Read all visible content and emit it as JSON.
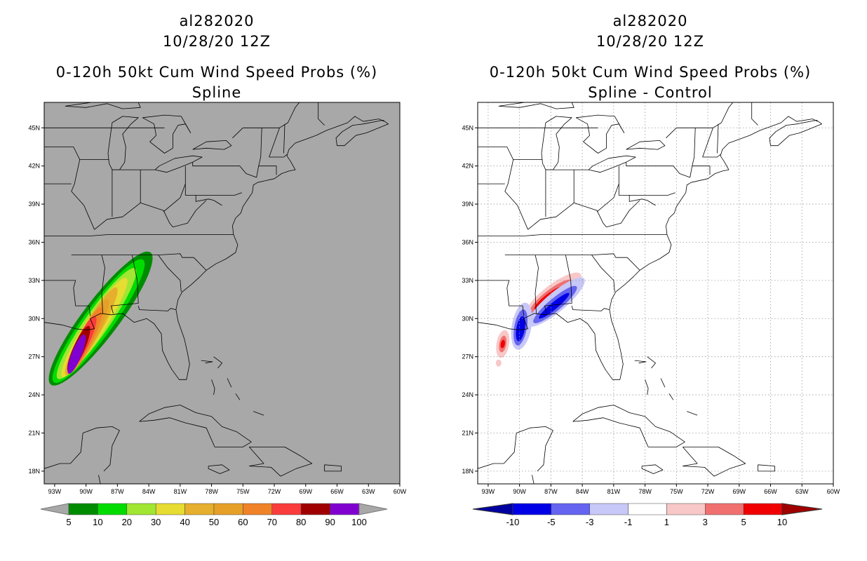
{
  "left": {
    "storm_id": "al282020",
    "datetime": "10/28/20 12Z",
    "title": "0-120h 50kt Cum Wind Speed Probs (%)",
    "subtitle": "Spline",
    "background": "#a8a8a8",
    "colorbar": {
      "labels": [
        "5",
        "10",
        "20",
        "30",
        "40",
        "50",
        "60",
        "70",
        "80",
        "90",
        "100"
      ],
      "colors": [
        "#008c00",
        "#00dc00",
        "#a0e632",
        "#e6dc32",
        "#e6af2d",
        "#e6a028",
        "#f08228",
        "#fa3c3c",
        "#a00000",
        "#8000d0"
      ],
      "under_color": "#a8a8a8",
      "over_color": "#a8a8a8"
    }
  },
  "right": {
    "storm_id": "al282020",
    "datetime": "10/28/20 12Z",
    "title": "0-120h 50kt Cum Wind Speed Probs (%)",
    "subtitle": "Spline - Control",
    "background": "#ffffff",
    "colorbar": {
      "labels": [
        "-10",
        "-5",
        "-3",
        "-1",
        "1",
        "3",
        "5",
        "10"
      ],
      "colors": [
        "#0000e6",
        "#6464f0",
        "#c8c8f8",
        "#ffffff",
        "#f8c8c8",
        "#f07070",
        "#f00000"
      ],
      "under_color": "#0000a0",
      "over_color": "#a00000"
    }
  },
  "lon_ticks": [
    "93W",
    "90W",
    "87W",
    "84W",
    "81W",
    "78W",
    "75W",
    "72W",
    "69W",
    "66W",
    "63W",
    "60W"
  ],
  "lat_ticks": [
    "45N",
    "42N",
    "39N",
    "36N",
    "33N",
    "30N",
    "27N",
    "24N",
    "21N",
    "18N"
  ]
}
